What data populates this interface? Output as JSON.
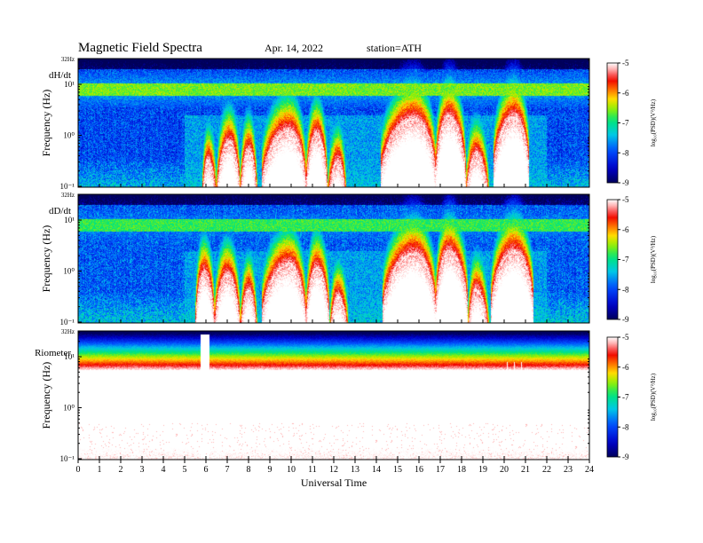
{
  "header": {
    "title": "Magnetic  Field  Spectra",
    "date": "Apr. 14, 2022",
    "station": "station=ATH"
  },
  "chart_data": [
    {
      "type": "heatmap",
      "panel_label": "dH/dt",
      "ylabel": "Frequency  (Hz)",
      "xlim": [
        0,
        24
      ],
      "y_scale": "log",
      "y_ticks": [
        "32Hz",
        "10¹",
        "10⁰",
        "10⁻¹"
      ],
      "colorbar": {
        "label": "log₁₀(PSD)(V²/Hz)",
        "ticks": [
          "-5",
          "-6",
          "-7",
          "-8",
          "-9"
        ],
        "range": [
          -9,
          -5
        ]
      },
      "background_level": -8.0,
      "band_level": -6.6,
      "events": [
        {
          "start": 5.8,
          "peak": 6.1,
          "end": 6.5,
          "max_freq": 0.3
        },
        {
          "start": 6.5,
          "peak": 7.1,
          "end": 7.6,
          "max_freq": 0.7
        },
        {
          "start": 7.6,
          "peak": 8.0,
          "end": 8.4,
          "max_freq": 0.5
        },
        {
          "start": 8.6,
          "peak": 9.9,
          "end": 10.7,
          "max_freq": 1.2
        },
        {
          "start": 10.7,
          "peak": 11.2,
          "end": 11.7,
          "max_freq": 1.0
        },
        {
          "start": 11.7,
          "peak": 12.2,
          "end": 12.6,
          "max_freq": 0.3
        },
        {
          "start": 14.2,
          "peak": 15.8,
          "end": 16.8,
          "max_freq": 2.0
        },
        {
          "start": 16.8,
          "peak": 17.4,
          "end": 18.2,
          "max_freq": 2.2
        },
        {
          "start": 18.2,
          "peak": 18.7,
          "end": 19.3,
          "max_freq": 0.4
        },
        {
          "start": 19.5,
          "peak": 20.5,
          "end": 21.2,
          "max_freq": 2.2
        }
      ]
    },
    {
      "type": "heatmap",
      "panel_label": "dD/dt",
      "ylabel": "Frequency  (Hz)",
      "xlim": [
        0,
        24
      ],
      "y_scale": "log",
      "y_ticks": [
        "32Hz",
        "10¹",
        "10⁰",
        "10⁻¹"
      ],
      "colorbar": {
        "label": "log₁₀(PSD)(V²/Hz)",
        "ticks": [
          "-5",
          "-6",
          "-7",
          "-8",
          "-9"
        ],
        "range": [
          -9,
          -5
        ]
      },
      "background_level": -7.9,
      "band_level": -6.8,
      "events": [
        {
          "start": 5.5,
          "peak": 5.9,
          "end": 6.4,
          "max_freq": 0.9
        },
        {
          "start": 6.4,
          "peak": 7.0,
          "end": 7.6,
          "max_freq": 0.8
        },
        {
          "start": 7.6,
          "peak": 8.0,
          "end": 8.4,
          "max_freq": 0.4
        },
        {
          "start": 8.6,
          "peak": 9.9,
          "end": 10.7,
          "max_freq": 1.3
        },
        {
          "start": 10.7,
          "peak": 11.2,
          "end": 11.8,
          "max_freq": 1.1
        },
        {
          "start": 11.8,
          "peak": 12.2,
          "end": 12.7,
          "max_freq": 0.3
        },
        {
          "start": 14.3,
          "peak": 15.8,
          "end": 16.8,
          "max_freq": 2.1
        },
        {
          "start": 16.8,
          "peak": 17.4,
          "end": 18.3,
          "max_freq": 2.3
        },
        {
          "start": 18.3,
          "peak": 18.7,
          "end": 19.3,
          "max_freq": 0.4
        },
        {
          "start": 19.4,
          "peak": 20.5,
          "end": 21.4,
          "max_freq": 2.3
        }
      ]
    },
    {
      "type": "heatmap",
      "panel_label": "Riometer",
      "ylabel": "Frequency  (Hz)",
      "xlim": [
        0,
        24
      ],
      "y_scale": "log",
      "y_ticks": [
        "32Hz",
        "10¹",
        "10⁰",
        "10⁻¹"
      ],
      "colorbar": {
        "label": "log₁₀(PSD)(V²/Hz)",
        "ticks": [
          "-5",
          "-6",
          "-7",
          "-8",
          "-9"
        ],
        "range": [
          -9,
          -5
        ]
      },
      "data_gap": [
        5.75,
        6.15
      ],
      "events": [
        {
          "start": 20.0,
          "peak": 20.6,
          "end": 21.0,
          "max_freq": 0.1
        }
      ]
    }
  ],
  "x_axis": {
    "label": "Universal  Time",
    "ticks": [
      "0",
      "1",
      "2",
      "3",
      "4",
      "5",
      "6",
      "7",
      "8",
      "9",
      "10",
      "11",
      "12",
      "13",
      "14",
      "15",
      "16",
      "17",
      "18",
      "19",
      "20",
      "21",
      "22",
      "23",
      "24"
    ]
  }
}
